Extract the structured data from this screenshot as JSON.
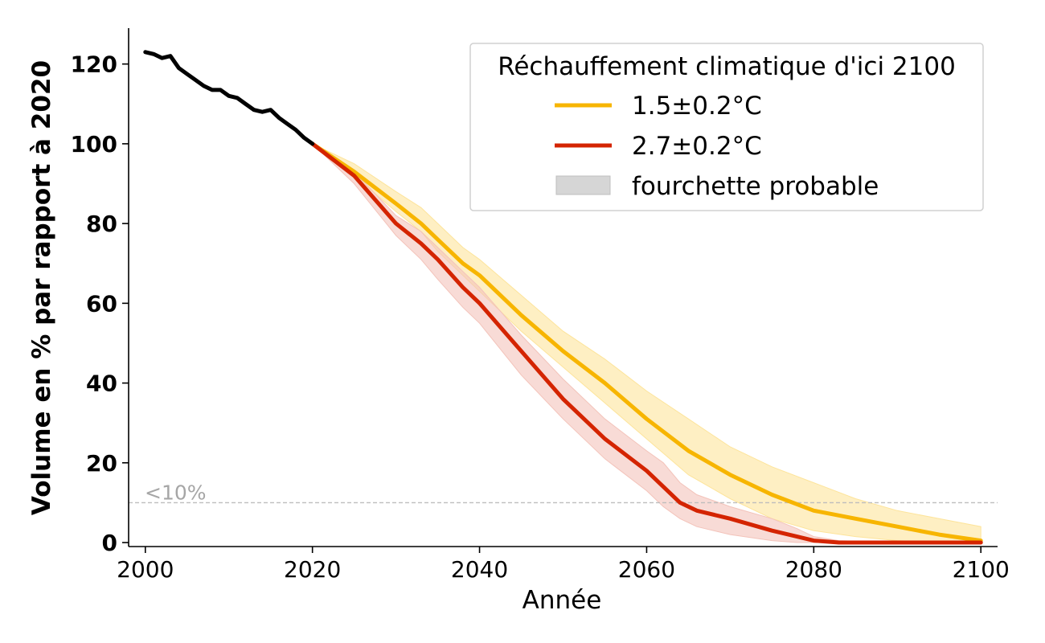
{
  "chart_data": {
    "type": "line",
    "title": "",
    "xlabel": "Année",
    "ylabel": "Volume en % par rapport à 2020",
    "xlim": [
      1998,
      2102
    ],
    "ylim": [
      -1,
      129
    ],
    "xticks": [
      2000,
      2020,
      2040,
      2060,
      2080,
      2100
    ],
    "yticks": [
      0,
      20,
      40,
      60,
      80,
      100,
      120
    ],
    "grid": false,
    "legend": {
      "title": "Réchauffement climatique d'ici 2100",
      "position": "top-right",
      "entries": [
        "1.5±0.2°C",
        "2.7±0.2°C",
        "fourchette probable"
      ]
    },
    "threshold": {
      "y": 10,
      "label": "<10%",
      "color": "#bdbdbd"
    },
    "historical": {
      "color": "#000000",
      "x": [
        2000,
        2001,
        2002,
        2003,
        2004,
        2005,
        2006,
        2007,
        2008,
        2009,
        2010,
        2011,
        2012,
        2013,
        2014,
        2015,
        2016,
        2017,
        2018,
        2019,
        2020
      ],
      "y": [
        123,
        122.5,
        121.5,
        122,
        119,
        117.5,
        116,
        114.5,
        113.5,
        113.5,
        112,
        111.5,
        110,
        108.5,
        108,
        108.5,
        106.5,
        105,
        103.5,
        101.5,
        100
      ]
    },
    "series": [
      {
        "name": "1.5±0.2°C",
        "color": "#f7b500",
        "band_color": "#fde49b",
        "x": [
          2020,
          2025,
          2030,
          2033,
          2035,
          2038,
          2040,
          2045,
          2050,
          2055,
          2060,
          2065,
          2070,
          2075,
          2080,
          2085,
          2090,
          2095,
          2100
        ],
        "y": [
          100,
          93,
          85,
          80,
          76,
          70,
          67,
          57,
          48,
          40,
          31,
          23,
          17,
          12,
          8,
          6,
          4,
          2,
          0.5
        ],
        "lower": [
          100,
          92,
          83,
          78,
          73,
          67,
          63,
          53,
          44,
          35,
          26,
          17,
          11,
          6,
          3,
          1.5,
          0.5,
          0,
          0
        ],
        "upper": [
          100,
          95,
          88,
          84,
          80,
          74,
          71,
          62,
          53,
          46,
          38,
          31,
          24,
          19,
          15,
          11,
          8,
          6,
          4
        ]
      },
      {
        "name": "2.7±0.2°C",
        "color": "#d42400",
        "band_color": "#f3c3ba",
        "x": [
          2020,
          2025,
          2030,
          2033,
          2035,
          2038,
          2040,
          2045,
          2050,
          2055,
          2060,
          2062,
          2064,
          2066,
          2070,
          2075,
          2078,
          2080,
          2083,
          2090,
          2100
        ],
        "y": [
          100,
          92,
          80,
          75,
          71,
          64,
          60,
          48,
          36,
          26,
          18,
          14,
          10,
          8,
          6,
          3,
          1.5,
          0.5,
          0,
          0,
          0
        ],
        "lower": [
          100,
          90,
          77,
          71,
          66,
          59,
          55,
          42,
          31,
          21,
          13,
          9,
          6,
          4,
          2,
          0.5,
          0,
          0,
          0,
          0,
          0
        ],
        "upper": [
          100,
          93,
          82,
          78,
          74,
          68,
          64,
          52,
          41,
          31,
          23,
          20,
          15,
          12,
          9,
          6,
          3.5,
          1.5,
          0.5,
          0,
          0
        ]
      }
    ]
  }
}
